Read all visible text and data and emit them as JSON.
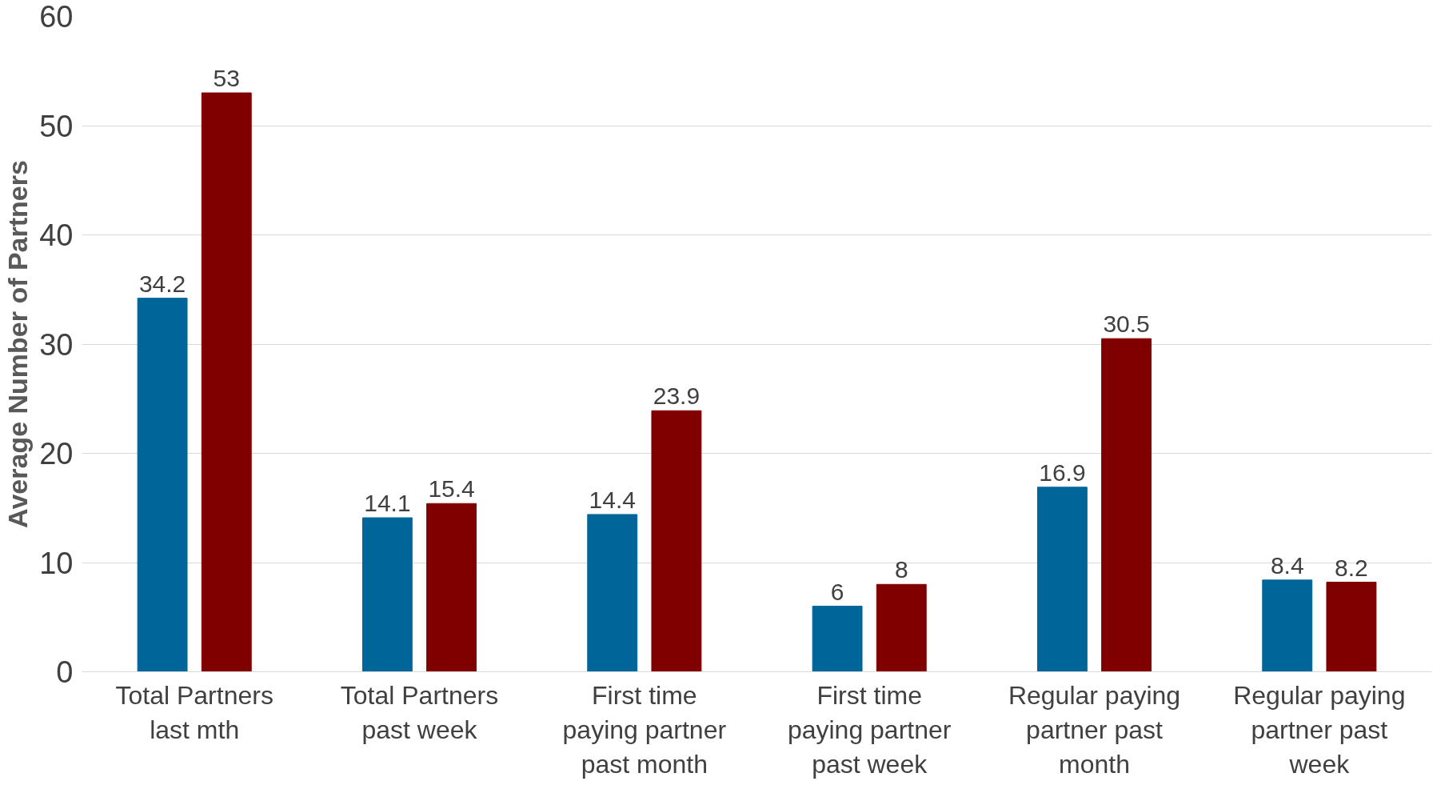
{
  "chart_data": {
    "type": "bar",
    "ylabel": "Average Number of Partners",
    "categories": [
      "Total Partners last mth",
      "Total Partners past week",
      "First time paying partner past month",
      "First time paying partner past week",
      "Regular paying partner past month",
      "Regular paying partner past week"
    ],
    "series": [
      {
        "color": "#006699",
        "values": [
          34.2,
          14.1,
          14.4,
          6,
          16.9,
          8.4
        ]
      },
      {
        "color": "#800000",
        "values": [
          53,
          15.4,
          23.9,
          8,
          30.5,
          8.2
        ]
      }
    ],
    "ylim": [
      0,
      60
    ],
    "yticks": [
      0,
      10,
      20,
      30,
      40,
      50,
      60
    ],
    "grid": "y",
    "data_labels": true
  }
}
